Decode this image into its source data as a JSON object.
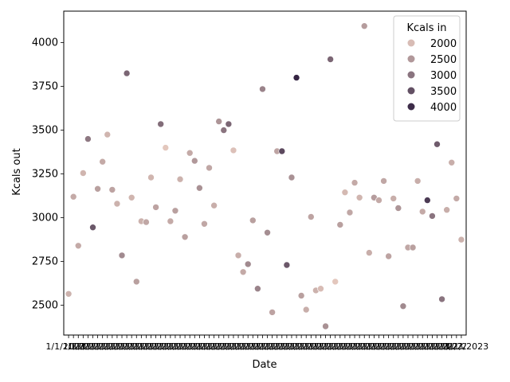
{
  "chart_data": {
    "type": "scatter",
    "xlabel": "Date",
    "ylabel": "Kcals out",
    "ylim": [
      2330,
      4180
    ],
    "yticks": [
      2500,
      2750,
      3000,
      3250,
      3500,
      3750,
      4000
    ],
    "x_tick_labels_overlapping": "1/1/2023 … 3/23/2023",
    "legend": {
      "title": "Kcals in",
      "placement": "top-right",
      "entries": [
        {
          "label": "2000",
          "value": 2000
        },
        {
          "label": "2500",
          "value": 2500
        },
        {
          "label": "3000",
          "value": 3000
        },
        {
          "label": "3500",
          "value": 3500
        },
        {
          "label": "4000",
          "value": 4000
        }
      ]
    },
    "color_scale": {
      "min": 1700,
      "max": 4200,
      "low_color": "#efd2c5",
      "high_color": "#2d1e3e"
    },
    "points": [
      {
        "x": 1,
        "kcals_out": 2565,
        "kcals_in": 2150
      },
      {
        "x": 2,
        "kcals_out": 3120,
        "kcals_in": 2250
      },
      {
        "x": 3,
        "kcals_out": 2840,
        "kcals_in": 2250
      },
      {
        "x": 4,
        "kcals_out": 3255,
        "kcals_in": 2100
      },
      {
        "x": 5,
        "kcals_out": 3450,
        "kcals_in": 2950
      },
      {
        "x": 6,
        "kcals_out": 2945,
        "kcals_in": 3400
      },
      {
        "x": 7,
        "kcals_out": 3165,
        "kcals_in": 2400
      },
      {
        "x": 8,
        "kcals_out": 3320,
        "kcals_in": 2250
      },
      {
        "x": 9,
        "kcals_out": 3475,
        "kcals_in": 2100
      },
      {
        "x": 10,
        "kcals_out": 3160,
        "kcals_in": 2350
      },
      {
        "x": 11,
        "kcals_out": 3080,
        "kcals_in": 2150
      },
      {
        "x": 12,
        "kcals_out": 2785,
        "kcals_in": 2700
      },
      {
        "x": 13,
        "kcals_out": 3825,
        "kcals_in": 3200
      },
      {
        "x": 14,
        "kcals_out": 3115,
        "kcals_in": 2100
      },
      {
        "x": 15,
        "kcals_out": 2635,
        "kcals_in": 2400
      },
      {
        "x": 16,
        "kcals_out": 2980,
        "kcals_in": 2150
      },
      {
        "x": 17,
        "kcals_out": 2975,
        "kcals_in": 2300
      },
      {
        "x": 18,
        "kcals_out": 3230,
        "kcals_in": 2100
      },
      {
        "x": 19,
        "kcals_out": 3060,
        "kcals_in": 2350
      },
      {
        "x": 20,
        "kcals_out": 3535,
        "kcals_in": 3100
      },
      {
        "x": 21,
        "kcals_out": 3400,
        "kcals_in": 1850
      },
      {
        "x": 22,
        "kcals_out": 2980,
        "kcals_in": 2250
      },
      {
        "x": 23,
        "kcals_out": 3040,
        "kcals_in": 2400
      },
      {
        "x": 24,
        "kcals_out": 3220,
        "kcals_in": 2150
      },
      {
        "x": 25,
        "kcals_out": 2890,
        "kcals_in": 2400
      },
      {
        "x": 26,
        "kcals_out": 3370,
        "kcals_in": 2250
      },
      {
        "x": 27,
        "kcals_out": 3325,
        "kcals_in": 2500
      },
      {
        "x": 28,
        "kcals_out": 3170,
        "kcals_in": 2600
      },
      {
        "x": 29,
        "kcals_out": 2965,
        "kcals_in": 2300
      },
      {
        "x": 30,
        "kcals_out": 3285,
        "kcals_in": 2300
      },
      {
        "x": 31,
        "kcals_out": 3070,
        "kcals_in": 2200
      },
      {
        "x": 32,
        "kcals_out": 3550,
        "kcals_in": 2550
      },
      {
        "x": 33,
        "kcals_out": 3500,
        "kcals_in": 3000
      },
      {
        "x": 34,
        "kcals_out": 3535,
        "kcals_in": 3200
      },
      {
        "x": 35,
        "kcals_out": 3385,
        "kcals_in": 1950
      },
      {
        "x": 36,
        "kcals_out": 2785,
        "kcals_in": 2200
      },
      {
        "x": 37,
        "kcals_out": 2690,
        "kcals_in": 2250
      },
      {
        "x": 38,
        "kcals_out": 2735,
        "kcals_in": 2700
      },
      {
        "x": 39,
        "kcals_out": 2985,
        "kcals_in": 2400
      },
      {
        "x": 40,
        "kcals_out": 2595,
        "kcals_in": 2800
      },
      {
        "x": 41,
        "kcals_out": 3735,
        "kcals_in": 2800
      },
      {
        "x": 42,
        "kcals_out": 2915,
        "kcals_in": 2650
      },
      {
        "x": 43,
        "kcals_out": 2460,
        "kcals_in": 2350
      },
      {
        "x": 44,
        "kcals_out": 3380,
        "kcals_in": 2350
      },
      {
        "x": 45,
        "kcals_out": 3380,
        "kcals_in": 3600
      },
      {
        "x": 46,
        "kcals_out": 2730,
        "kcals_in": 3400
      },
      {
        "x": 47,
        "kcals_out": 3230,
        "kcals_in": 2600
      },
      {
        "x": 48,
        "kcals_out": 3800,
        "kcals_in": 4100
      },
      {
        "x": 49,
        "kcals_out": 2555,
        "kcals_in": 2400
      },
      {
        "x": 50,
        "kcals_out": 2475,
        "kcals_in": 2200
      },
      {
        "x": 51,
        "kcals_out": 3005,
        "kcals_in": 2350
      },
      {
        "x": 52,
        "kcals_out": 2585,
        "kcals_in": 2150
      },
      {
        "x": 53,
        "kcals_out": 2595,
        "kcals_in": 2000
      },
      {
        "x": 54,
        "kcals_out": 2380,
        "kcals_in": 2600
      },
      {
        "x": 55,
        "kcals_out": 3905,
        "kcals_in": 3200
      },
      {
        "x": 56,
        "kcals_out": 2635,
        "kcals_in": 1850
      },
      {
        "x": 57,
        "kcals_out": 2960,
        "kcals_in": 2400
      },
      {
        "x": 58,
        "kcals_out": 3145,
        "kcals_in": 2050
      },
      {
        "x": 59,
        "kcals_out": 3030,
        "kcals_in": 2300
      },
      {
        "x": 60,
        "kcals_out": 3200,
        "kcals_in": 2250
      },
      {
        "x": 61,
        "kcals_out": 3115,
        "kcals_in": 2100
      },
      {
        "x": 62,
        "kcals_out": 4095,
        "kcals_in": 2450
      },
      {
        "x": 63,
        "kcals_out": 2800,
        "kcals_in": 2200
      },
      {
        "x": 64,
        "kcals_out": 3115,
        "kcals_in": 2450
      },
      {
        "x": 65,
        "kcals_out": 3100,
        "kcals_in": 2250
      },
      {
        "x": 66,
        "kcals_out": 3210,
        "kcals_in": 2300
      },
      {
        "x": 67,
        "kcals_out": 2780,
        "kcals_in": 2350
      },
      {
        "x": 68,
        "kcals_out": 3110,
        "kcals_in": 2200
      },
      {
        "x": 69,
        "kcals_out": 3055,
        "kcals_in": 2550
      },
      {
        "x": 70,
        "kcals_out": 2495,
        "kcals_in": 2700
      },
      {
        "x": 71,
        "kcals_out": 2830,
        "kcals_in": 2300
      },
      {
        "x": 72,
        "kcals_out": 2830,
        "kcals_in": 2400
      },
      {
        "x": 73,
        "kcals_out": 3210,
        "kcals_in": 2200
      },
      {
        "x": 74,
        "kcals_out": 3035,
        "kcals_in": 2250
      },
      {
        "x": 75,
        "kcals_out": 3100,
        "kcals_in": 3800
      },
      {
        "x": 76,
        "kcals_out": 3010,
        "kcals_in": 3000
      },
      {
        "x": 77,
        "kcals_out": 3420,
        "kcals_in": 3350
      },
      {
        "x": 78,
        "kcals_out": 2535,
        "kcals_in": 3000
      },
      {
        "x": 79,
        "kcals_out": 3045,
        "kcals_in": 2200
      },
      {
        "x": 80,
        "kcals_out": 3315,
        "kcals_in": 2200
      },
      {
        "x": 81,
        "kcals_out": 3110,
        "kcals_in": 2250
      },
      {
        "x": 82,
        "kcals_out": 2875,
        "kcals_in": 2150
      }
    ]
  }
}
